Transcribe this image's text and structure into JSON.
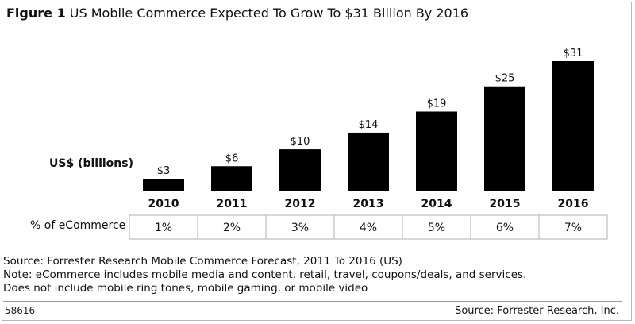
{
  "title": {
    "figure_label": "Figure 1",
    "text": "US Mobile Commerce Expected To Grow To $31 Billion By 2016"
  },
  "y_label": "US$ (billions)",
  "pct_row_label": "% of eCommerce",
  "chart_data": {
    "type": "bar",
    "categories": [
      "2010",
      "2011",
      "2012",
      "2013",
      "2014",
      "2015",
      "2016"
    ],
    "values": [
      3,
      6,
      10,
      14,
      19,
      25,
      31
    ],
    "data_labels": [
      "$3",
      "$6",
      "$10",
      "$14",
      "$19",
      "$25",
      "$31"
    ],
    "pct_of_ecommerce": [
      "1%",
      "2%",
      "3%",
      "4%",
      "5%",
      "6%",
      "7%"
    ],
    "ylabel": "US$ (billions)",
    "ylim": [
      0,
      31
    ],
    "grid": false,
    "bar_color": "#000000"
  },
  "notes": [
    "Source: Forrester Research Mobile Commerce Forecast, 2011 To 2016 (US)",
    "Note: eCommerce includes mobile media and content, retail, travel, coupons/deals, and services.",
    "Does not include mobile ring tones, mobile gaming, or mobile video"
  ],
  "footer": {
    "code": "58616",
    "source": "Source: Forrester Research, Inc."
  }
}
